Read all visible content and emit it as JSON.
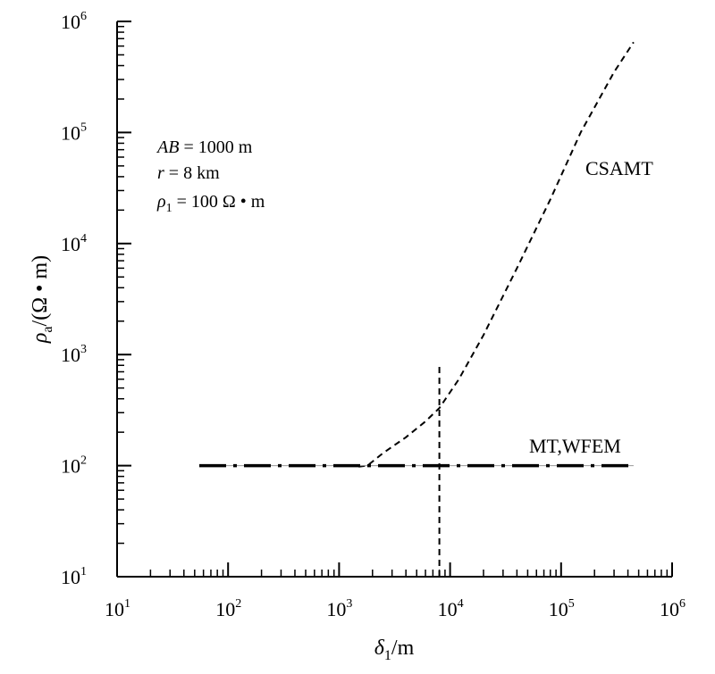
{
  "chart_data": {
    "type": "line",
    "xscale": "log",
    "yscale": "log",
    "xlim": [
      10,
      1000000
    ],
    "ylim": [
      10,
      1000000
    ],
    "x_ticks": [
      {
        "base": "10",
        "exp": "1",
        "value": 10
      },
      {
        "base": "10",
        "exp": "2",
        "value": 100
      },
      {
        "base": "10",
        "exp": "3",
        "value": 1000
      },
      {
        "base": "10",
        "exp": "4",
        "value": 10000
      },
      {
        "base": "10",
        "exp": "5",
        "value": 100000
      },
      {
        "base": "10",
        "exp": "6",
        "value": 1000000
      }
    ],
    "y_ticks": [
      {
        "base": "10",
        "exp": "1",
        "value": 10
      },
      {
        "base": "10",
        "exp": "2",
        "value": 100
      },
      {
        "base": "10",
        "exp": "3",
        "value": 1000
      },
      {
        "base": "10",
        "exp": "4",
        "value": 10000
      },
      {
        "base": "10",
        "exp": "5",
        "value": 100000
      },
      {
        "base": "10",
        "exp": "6",
        "value": 1000000
      }
    ],
    "xlabel": {
      "main": "δ",
      "sub": "1",
      "unit": "/m"
    },
    "ylabel": {
      "main": "ρ",
      "sub": "a",
      "unit": "/(Ω • m)"
    },
    "grid": false,
    "annotations": [
      {
        "italic": "AB",
        "rest": " = 1000 m"
      },
      {
        "italic": "r",
        "rest": " = 8 km"
      },
      {
        "italic": "ρ",
        "sub": "1",
        "rest": " = 100 Ω • m"
      }
    ],
    "series": [
      {
        "name": "CSAMT",
        "style": "dashed",
        "x": [
          1500,
          1800,
          2500,
          4000,
          6000,
          8000,
          12000,
          20000,
          40000,
          80000,
          150000,
          300000,
          450000
        ],
        "y": [
          98,
          100,
          130,
          180,
          250,
          330,
          600,
          1500,
          6000,
          25000,
          100000,
          350000,
          650000
        ]
      },
      {
        "name": "MT,WFEM",
        "style": "dashdot",
        "x": [
          55,
          450000
        ],
        "y": [
          100,
          100
        ]
      },
      {
        "name": "",
        "style": "dashed",
        "x": [
          8000,
          8000
        ],
        "y": [
          10,
          800
        ]
      }
    ]
  }
}
